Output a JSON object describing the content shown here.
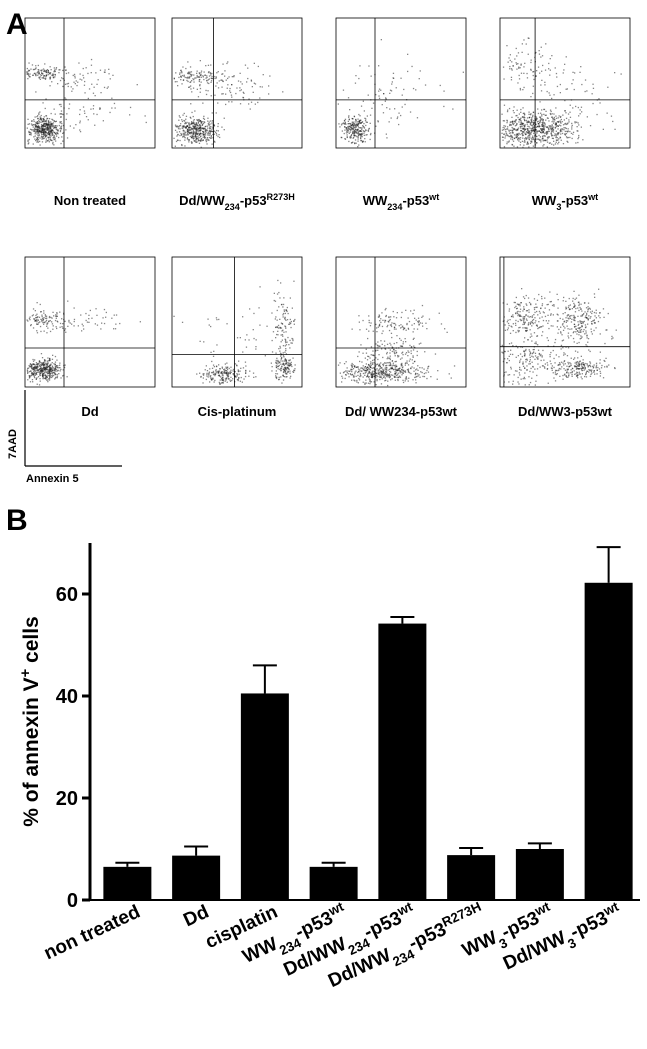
{
  "panel_a": {
    "label": "A",
    "plots": [
      {
        "label": [
          {
            "t": "Non treated"
          }
        ]
      },
      {
        "label": [
          {
            "t": "Dd/WW"
          },
          {
            "t": "234",
            "s": "sub"
          },
          {
            "t": "-p53"
          },
          {
            "t": "R273H",
            "s": "sup"
          }
        ]
      },
      {
        "label": [
          {
            "t": "WW"
          },
          {
            "t": "234",
            "s": "sub"
          },
          {
            "t": "-p53"
          },
          {
            "t": "wt",
            "s": "sup"
          }
        ]
      },
      {
        "label": [
          {
            "t": "WW"
          },
          {
            "t": "3",
            "s": "sub"
          },
          {
            "t": "-p53"
          },
          {
            "t": "wt",
            "s": "sup"
          }
        ]
      },
      {
        "label": [
          {
            "t": "Dd"
          }
        ]
      },
      {
        "label": [
          {
            "t": "Cis-platinum"
          }
        ]
      },
      {
        "label": [
          {
            "t": "Dd/ WW234-p53wt"
          }
        ]
      },
      {
        "label": [
          {
            "t": "Dd/WW3-p53wt"
          }
        ]
      }
    ],
    "y_axis_label": "7AAD",
    "x_axis_label": "Annexin 5"
  },
  "chart_data": {
    "type": "bar",
    "panel_label": "B",
    "y_label": [
      {
        "t": "% of annexin V"
      },
      {
        "t": "+",
        "s": "sup"
      },
      {
        "t": " cells"
      }
    ],
    "categories": [
      [
        {
          "t": "non treated"
        }
      ],
      [
        {
          "t": "Dd"
        }
      ],
      [
        {
          "t": "cisplatin"
        }
      ],
      [
        {
          "t": "WW"
        },
        {
          "t": "234",
          "s": "sub"
        },
        {
          "t": "-p53"
        },
        {
          "t": "wt",
          "s": "sup"
        }
      ],
      [
        {
          "t": "Dd/WW"
        },
        {
          "t": "234",
          "s": "sub"
        },
        {
          "t": "-p53"
        },
        {
          "t": "wt",
          "s": "sup"
        }
      ],
      [
        {
          "t": "Dd/WW"
        },
        {
          "t": "234",
          "s": "sub"
        },
        {
          "t": "-p53"
        },
        {
          "t": "R273H",
          "s": "sup"
        }
      ],
      [
        {
          "t": "WW"
        },
        {
          "t": "3",
          "s": "sub"
        },
        {
          "t": "-p53"
        },
        {
          "t": "wt",
          "s": "sup"
        }
      ],
      [
        {
          "t": "Dd/WW"
        },
        {
          "t": "3",
          "s": "sub"
        },
        {
          "t": "-p53"
        },
        {
          "t": "wt",
          "s": "sup"
        }
      ]
    ],
    "values": [
      6.5,
      8.7,
      40.5,
      6.5,
      54.2,
      8.8,
      10,
      62.2
    ],
    "errors": [
      0.8,
      1.8,
      5.5,
      0.8,
      1.3,
      1.4,
      1.1,
      7
    ],
    "color": "#000000",
    "ylim": [
      0,
      70
    ],
    "yticks": [
      0,
      20,
      40,
      60
    ]
  }
}
